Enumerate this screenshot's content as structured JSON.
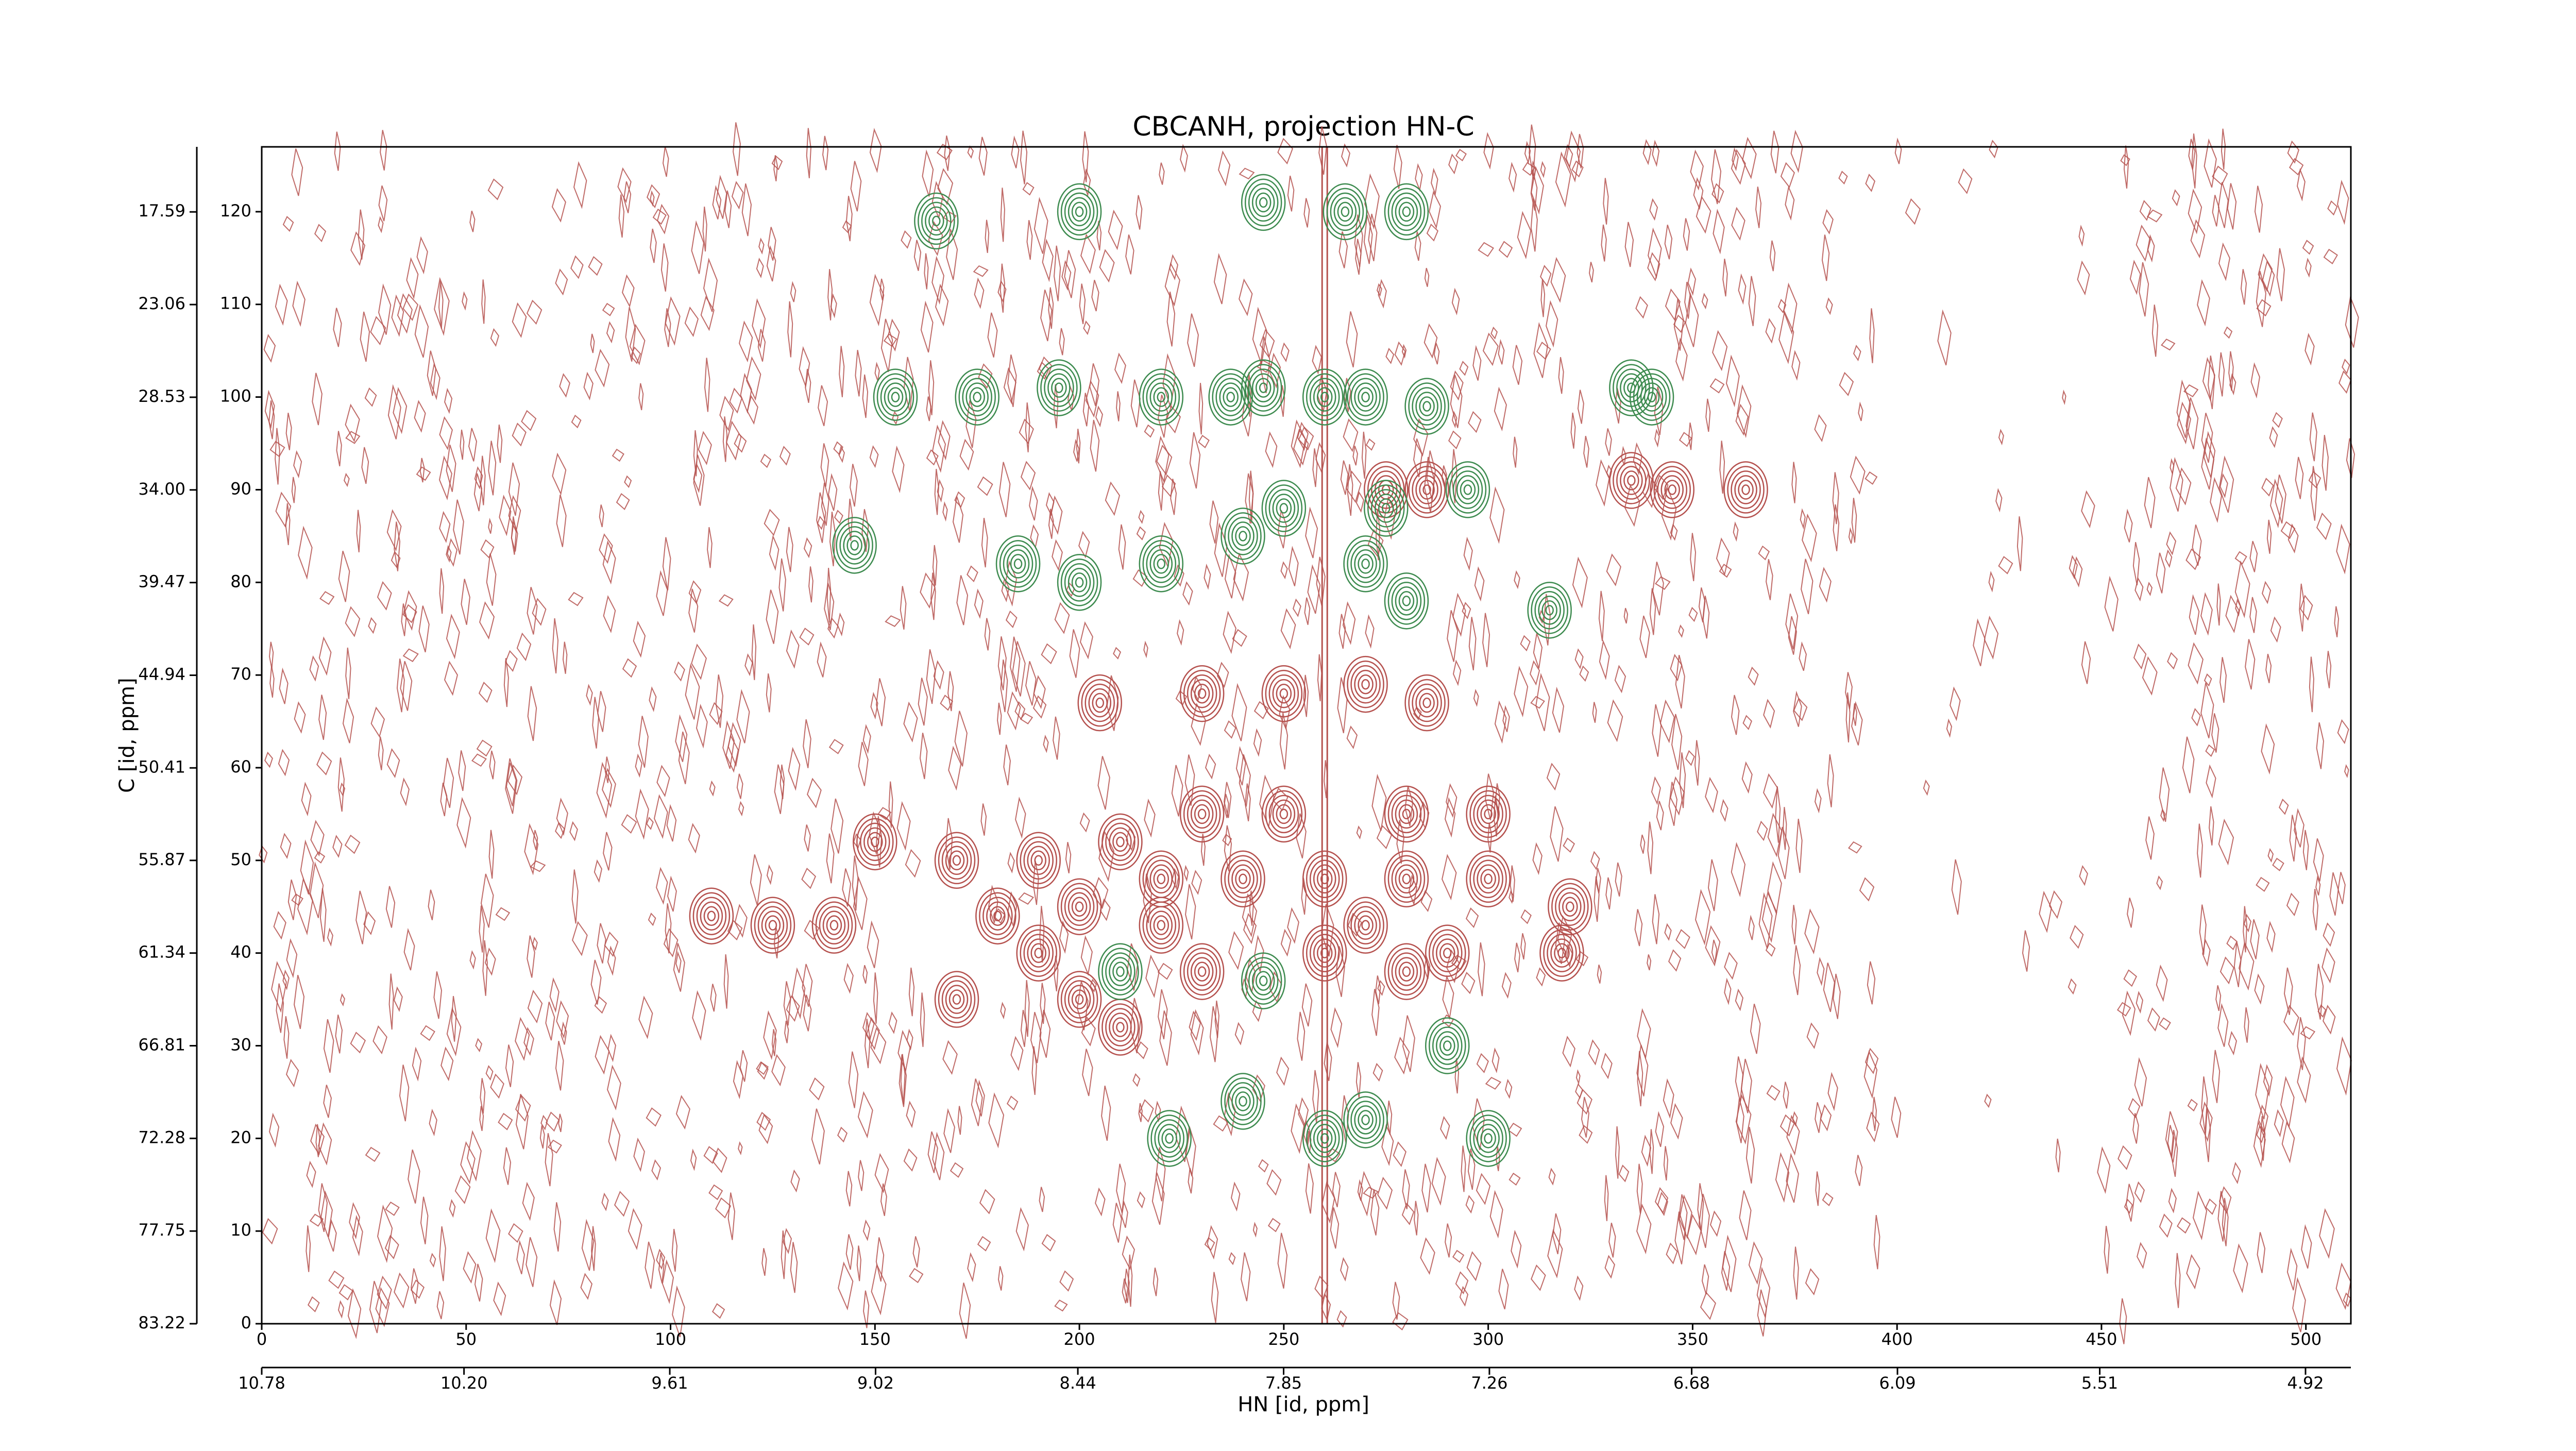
{
  "chart_data": {
    "type": "contour",
    "title": "CBCANH, projection HN-C",
    "x_label": "HN [id, ppm]",
    "y_label": "C [id, ppm]",
    "xlim": [
      0,
      511
    ],
    "xticks": [
      0,
      50,
      100,
      150,
      200,
      250,
      300,
      350,
      400,
      450,
      500
    ],
    "ylim": [
      0,
      127
    ],
    "yticks": [
      0,
      10,
      20,
      30,
      40,
      50,
      60,
      70,
      80,
      90,
      100,
      110,
      120
    ],
    "x2lim": [
      10.78,
      4.79
    ],
    "x2ticks": [
      10.78,
      "10.20",
      9.61,
      9.02,
      8.44,
      7.85,
      7.26,
      6.68,
      6.09,
      5.51,
      4.92
    ],
    "y2lim": [
      83.22,
      13.75
    ],
    "y2ticks": [
      83.22,
      77.75,
      72.28,
      66.81,
      61.34,
      55.87,
      "50.41",
      44.94,
      39.47,
      "34.00",
      28.53,
      23.06,
      17.59
    ],
    "series": [
      {
        "color": "#b5514e",
        "x": [
          260,
          260,
          240,
          220,
          200,
          180,
          170,
          150,
          125,
          140,
          110,
          280,
          300,
          320,
          300,
          280,
          250,
          230,
          210,
          190,
          200,
          230,
          280,
          190,
          210,
          170,
          250,
          230,
          205,
          270,
          285,
          345,
          335,
          285,
          275,
          363,
          318,
          290,
          220,
          270
        ],
        "y": [
          48,
          40,
          48,
          48,
          45,
          44,
          50,
          52,
          43,
          43,
          44,
          48,
          48,
          45,
          55,
          55,
          55,
          55,
          52,
          50,
          35,
          38,
          38,
          40,
          32,
          35,
          68,
          68,
          67,
          69,
          67,
          90,
          91,
          90,
          90,
          90,
          40,
          40,
          43,
          43
        ]
      },
      {
        "color": "#3d8b4f",
        "x": [
          260,
          237,
          245,
          220,
          270,
          285,
          195,
          175,
          155,
          250,
          275,
          295,
          340,
          145,
          185,
          200,
          220,
          240,
          270,
          280,
          260,
          240,
          270,
          222,
          300,
          290,
          245,
          210,
          265,
          245,
          280,
          200,
          165,
          315,
          335
        ],
        "y": [
          100,
          100,
          101,
          100,
          100,
          99,
          101,
          100,
          100,
          88,
          88,
          90,
          100,
          84,
          82,
          80,
          82,
          85,
          82,
          78,
          20,
          24,
          22,
          20,
          20,
          30,
          37,
          38,
          120,
          121,
          120,
          120,
          119,
          77,
          101
        ]
      }
    ]
  }
}
